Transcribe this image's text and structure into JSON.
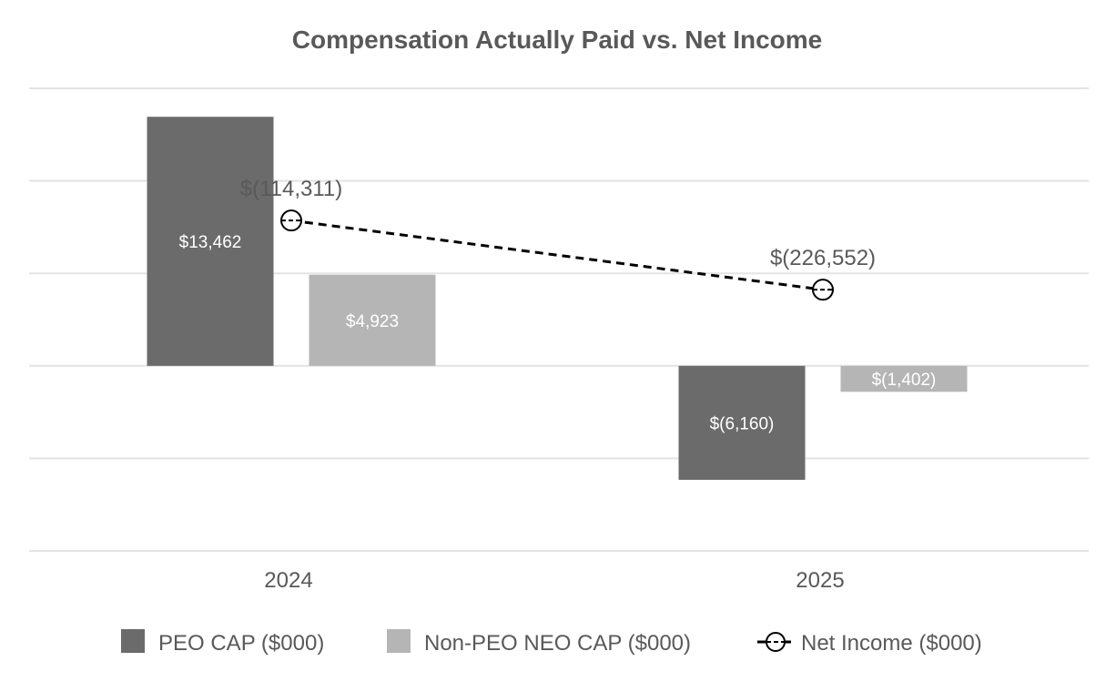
{
  "chart_data": {
    "type": "bar",
    "title": "Compensation Actually Paid vs. Net Income",
    "xlabel": "",
    "ylabel": "",
    "categories": [
      "2024",
      "2025"
    ],
    "series": [
      {
        "name": "PEO CAP ($000)",
        "type": "bar",
        "axis": "left",
        "color": "#6b6b6b",
        "values": [
          13462,
          -6160
        ],
        "labels": [
          "$13,462",
          "$(6,160)"
        ]
      },
      {
        "name": "Non-PEO NEO CAP ($000)",
        "type": "bar",
        "axis": "left",
        "color": "#b5b5b5",
        "values": [
          4923,
          -1402
        ],
        "labels": [
          "$4,923",
          "$(1,402)"
        ]
      },
      {
        "name": "Net Income ($000)",
        "type": "line",
        "axis": "right",
        "color": "#000000",
        "line_style": "dashed",
        "marker": "open-circle",
        "values": [
          -114311,
          -226552
        ],
        "labels": [
          "$(114,311)",
          "$(226,552)"
        ]
      }
    ],
    "ylim": [
      -10000,
      15000
    ],
    "ylim_secondary": [
      -650000,
      100000
    ],
    "grid": true,
    "y_tick_labels_visible": false,
    "legend_position": "bottom"
  }
}
